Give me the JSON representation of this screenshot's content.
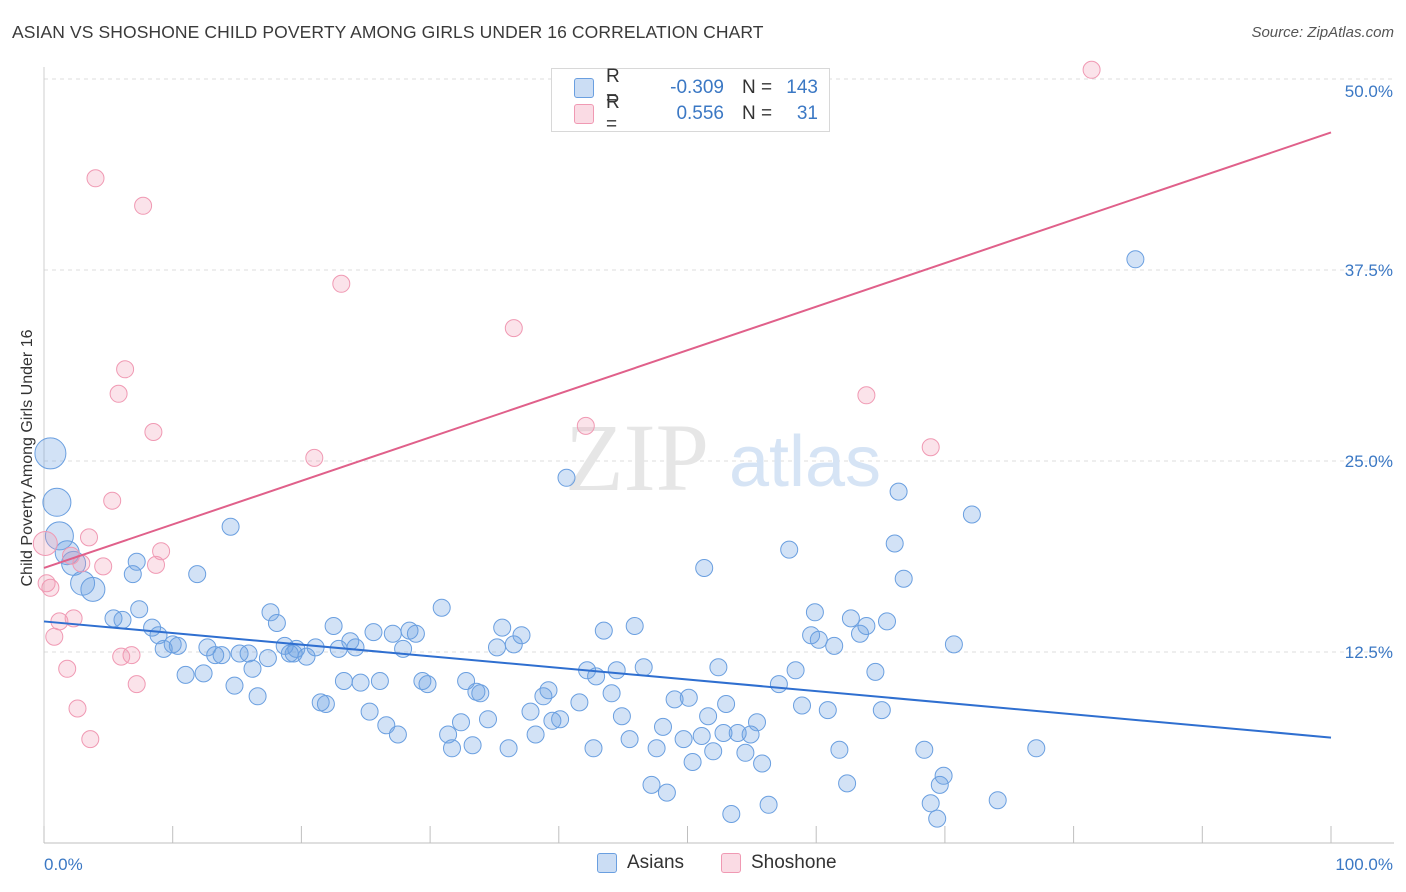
{
  "header": {
    "title": "ASIAN VS SHOSHONE CHILD POVERTY AMONG GIRLS UNDER 16 CORRELATION CHART",
    "source": "Source: ZipAtlas.com"
  },
  "watermark": {
    "zip": "ZIP",
    "atlas": "atlas"
  },
  "stats_legend": [
    {
      "r_label": "R =",
      "r_value": "-0.309",
      "n_label": "N =",
      "n_value": "143",
      "color": "#6a9fe0"
    },
    {
      "r_label": "R =",
      "r_value": "0.556",
      "n_label": "N =",
      "n_value": "31",
      "color": "#f099b3"
    }
  ],
  "bottom_legend": [
    {
      "label": "Asians",
      "color": "#6a9fe0"
    },
    {
      "label": "Shoshone",
      "color": "#f099b3"
    }
  ],
  "chart_data": {
    "type": "scatter",
    "title": "ASIAN VS SHOSHONE CHILD POVERTY AMONG GIRLS UNDER 16 CORRELATION CHART",
    "xlabel": "",
    "ylabel": "Child Poverty Among Girls Under 16",
    "xlim": [
      0,
      100
    ],
    "ylim": [
      0,
      50
    ],
    "x_tick_labels": [
      "0.0%",
      "100.0%"
    ],
    "y_tick_values": [
      12.5,
      25.0,
      37.5,
      50.0
    ],
    "y_tick_labels": [
      "12.5%",
      "25.0%",
      "37.5%",
      "50.0%"
    ],
    "grid": true,
    "legend_position": "top-center",
    "series": [
      {
        "name": "Asians",
        "color": "#6a9fe0",
        "trend": {
          "x": [
            0,
            100
          ],
          "y": [
            14.5,
            6.9
          ]
        },
        "points": [
          [
            0.5,
            25.5,
            4
          ],
          [
            1.0,
            22.3,
            3
          ],
          [
            1.2,
            20.1,
            3
          ],
          [
            1.8,
            19.0,
            2
          ],
          [
            2.3,
            18.3,
            2
          ],
          [
            3.0,
            17.0,
            2
          ],
          [
            3.8,
            16.6,
            2
          ],
          [
            6.9,
            17.6,
            1
          ],
          [
            7.2,
            18.4,
            1
          ],
          [
            14.5,
            20.7,
            1
          ],
          [
            11.9,
            17.6,
            1
          ],
          [
            7.4,
            15.3,
            1
          ],
          [
            6.1,
            14.6,
            1
          ],
          [
            8.4,
            14.1,
            1
          ],
          [
            5.4,
            14.7,
            1
          ],
          [
            8.9,
            13.6,
            1
          ],
          [
            9.3,
            12.7,
            1
          ],
          [
            10.0,
            13.0,
            1
          ],
          [
            10.4,
            12.9,
            1
          ],
          [
            11.0,
            11.0,
            1
          ],
          [
            12.4,
            11.1,
            1
          ],
          [
            12.7,
            12.8,
            1
          ],
          [
            13.3,
            12.3,
            1
          ],
          [
            13.8,
            12.3,
            1
          ],
          [
            14.8,
            10.3,
            1
          ],
          [
            15.2,
            12.4,
            1
          ],
          [
            15.9,
            12.4,
            1
          ],
          [
            16.2,
            11.4,
            1
          ],
          [
            16.6,
            9.6,
            1
          ],
          [
            17.4,
            12.1,
            1
          ],
          [
            17.6,
            15.1,
            1
          ],
          [
            18.1,
            14.4,
            1
          ],
          [
            18.7,
            12.9,
            1
          ],
          [
            19.1,
            12.4,
            1
          ],
          [
            19.4,
            12.4,
            1
          ],
          [
            19.6,
            12.7,
            1
          ],
          [
            20.4,
            12.2,
            1
          ],
          [
            21.1,
            12.8,
            1
          ],
          [
            21.5,
            9.2,
            1
          ],
          [
            21.9,
            9.1,
            1
          ],
          [
            22.5,
            14.2,
            1
          ],
          [
            22.9,
            12.7,
            1
          ],
          [
            23.3,
            10.6,
            1
          ],
          [
            23.8,
            13.2,
            1
          ],
          [
            24.2,
            12.8,
            1
          ],
          [
            24.6,
            10.5,
            1
          ],
          [
            25.3,
            8.6,
            1
          ],
          [
            25.6,
            13.8,
            1
          ],
          [
            26.1,
            10.6,
            1
          ],
          [
            26.6,
            7.7,
            1
          ],
          [
            27.1,
            13.7,
            1
          ],
          [
            27.5,
            7.1,
            1
          ],
          [
            27.9,
            12.7,
            1
          ],
          [
            28.4,
            13.9,
            1
          ],
          [
            28.9,
            13.7,
            1
          ],
          [
            29.4,
            10.6,
            1
          ],
          [
            29.8,
            10.4,
            1
          ],
          [
            30.9,
            15.4,
            1
          ],
          [
            31.4,
            7.1,
            1
          ],
          [
            31.7,
            6.2,
            1
          ],
          [
            32.4,
            7.9,
            1
          ],
          [
            32.8,
            10.6,
            1
          ],
          [
            33.3,
            6.4,
            1
          ],
          [
            33.6,
            9.9,
            1
          ],
          [
            33.9,
            9.8,
            1
          ],
          [
            34.5,
            8.1,
            1
          ],
          [
            35.2,
            12.8,
            1
          ],
          [
            35.6,
            14.1,
            1
          ],
          [
            36.1,
            6.2,
            1
          ],
          [
            36.5,
            13.0,
            1
          ],
          [
            37.1,
            13.6,
            1
          ],
          [
            37.8,
            8.6,
            1
          ],
          [
            38.2,
            7.1,
            1
          ],
          [
            38.8,
            9.6,
            1
          ],
          [
            39.2,
            10.0,
            1
          ],
          [
            39.5,
            8.0,
            1
          ],
          [
            40.1,
            8.1,
            1
          ],
          [
            40.6,
            23.9,
            1
          ],
          [
            41.6,
            9.2,
            1
          ],
          [
            42.2,
            11.3,
            1
          ],
          [
            42.7,
            6.2,
            1
          ],
          [
            42.9,
            10.9,
            1
          ],
          [
            43.5,
            13.9,
            1
          ],
          [
            44.1,
            9.8,
            1
          ],
          [
            44.5,
            11.3,
            1
          ],
          [
            44.9,
            8.3,
            1
          ],
          [
            45.5,
            6.8,
            1
          ],
          [
            45.9,
            14.2,
            1
          ],
          [
            46.6,
            11.5,
            1
          ],
          [
            47.2,
            3.8,
            1
          ],
          [
            47.6,
            6.2,
            1
          ],
          [
            48.1,
            7.6,
            1
          ],
          [
            48.4,
            3.3,
            1
          ],
          [
            49.0,
            9.4,
            1
          ],
          [
            49.7,
            6.8,
            1
          ],
          [
            50.1,
            9.5,
            1
          ],
          [
            50.4,
            5.3,
            1
          ],
          [
            51.1,
            7.0,
            1
          ],
          [
            51.3,
            18.0,
            1
          ],
          [
            51.6,
            8.3,
            1
          ],
          [
            52.0,
            6.0,
            1
          ],
          [
            52.4,
            11.5,
            1
          ],
          [
            52.8,
            7.2,
            1
          ],
          [
            53.0,
            9.1,
            1
          ],
          [
            53.4,
            1.9,
            1
          ],
          [
            53.9,
            7.2,
            1
          ],
          [
            54.5,
            5.9,
            1
          ],
          [
            54.9,
            7.1,
            1
          ],
          [
            55.4,
            7.9,
            1
          ],
          [
            55.8,
            5.2,
            1
          ],
          [
            56.3,
            2.5,
            1
          ],
          [
            57.1,
            10.4,
            1
          ],
          [
            57.9,
            19.2,
            1
          ],
          [
            58.4,
            11.3,
            1
          ],
          [
            58.9,
            9.0,
            1
          ],
          [
            59.6,
            13.6,
            1
          ],
          [
            59.9,
            15.1,
            1
          ],
          [
            60.2,
            13.3,
            1
          ],
          [
            60.9,
            8.7,
            1
          ],
          [
            61.4,
            12.9,
            1
          ],
          [
            61.8,
            6.1,
            1
          ],
          [
            62.4,
            3.9,
            1
          ],
          [
            62.7,
            14.7,
            1
          ],
          [
            63.4,
            13.7,
            1
          ],
          [
            63.9,
            14.2,
            1
          ],
          [
            64.6,
            11.2,
            1
          ],
          [
            65.1,
            8.7,
            1
          ],
          [
            65.5,
            14.5,
            1
          ],
          [
            66.1,
            19.6,
            1
          ],
          [
            66.4,
            23.0,
            1
          ],
          [
            66.8,
            17.3,
            1
          ],
          [
            68.4,
            6.1,
            1
          ],
          [
            68.9,
            2.6,
            1
          ],
          [
            69.4,
            1.6,
            1
          ],
          [
            69.6,
            3.8,
            1
          ],
          [
            69.9,
            4.4,
            1
          ],
          [
            70.7,
            13.0,
            1
          ],
          [
            72.1,
            21.5,
            1
          ],
          [
            74.1,
            2.8,
            1
          ],
          [
            77.1,
            6.2,
            1
          ],
          [
            84.8,
            38.2,
            1
          ]
        ]
      },
      {
        "name": "Shoshone",
        "color": "#f099b3",
        "trend": {
          "x": [
            0,
            100
          ],
          "y": [
            18.0,
            46.5
          ]
        },
        "points": [
          [
            0.1,
            19.6,
            2
          ],
          [
            0.2,
            17.0,
            1
          ],
          [
            0.5,
            16.7,
            1
          ],
          [
            0.8,
            13.5,
            1
          ],
          [
            1.2,
            14.5,
            1
          ],
          [
            1.8,
            11.4,
            1
          ],
          [
            2.1,
            18.8,
            1
          ],
          [
            2.3,
            14.7,
            1
          ],
          [
            2.6,
            8.8,
            1
          ],
          [
            2.9,
            18.3,
            1
          ],
          [
            3.5,
            20.0,
            1
          ],
          [
            3.6,
            6.8,
            1
          ],
          [
            4.0,
            43.5,
            1
          ],
          [
            4.6,
            18.1,
            1
          ],
          [
            5.3,
            22.4,
            1
          ],
          [
            5.8,
            29.4,
            1
          ],
          [
            6.0,
            12.2,
            1
          ],
          [
            6.3,
            31.0,
            1
          ],
          [
            6.8,
            12.3,
            1
          ],
          [
            7.2,
            10.4,
            1
          ],
          [
            7.7,
            41.7,
            1
          ],
          [
            8.5,
            26.9,
            1
          ],
          [
            8.7,
            18.2,
            1
          ],
          [
            9.1,
            19.1,
            1
          ],
          [
            21.0,
            25.2,
            1
          ],
          [
            23.1,
            36.6,
            1
          ],
          [
            36.5,
            33.7,
            1
          ],
          [
            42.1,
            27.3,
            1
          ],
          [
            63.9,
            29.3,
            1
          ],
          [
            68.9,
            25.9,
            1
          ],
          [
            81.4,
            50.6,
            1
          ]
        ]
      }
    ]
  }
}
